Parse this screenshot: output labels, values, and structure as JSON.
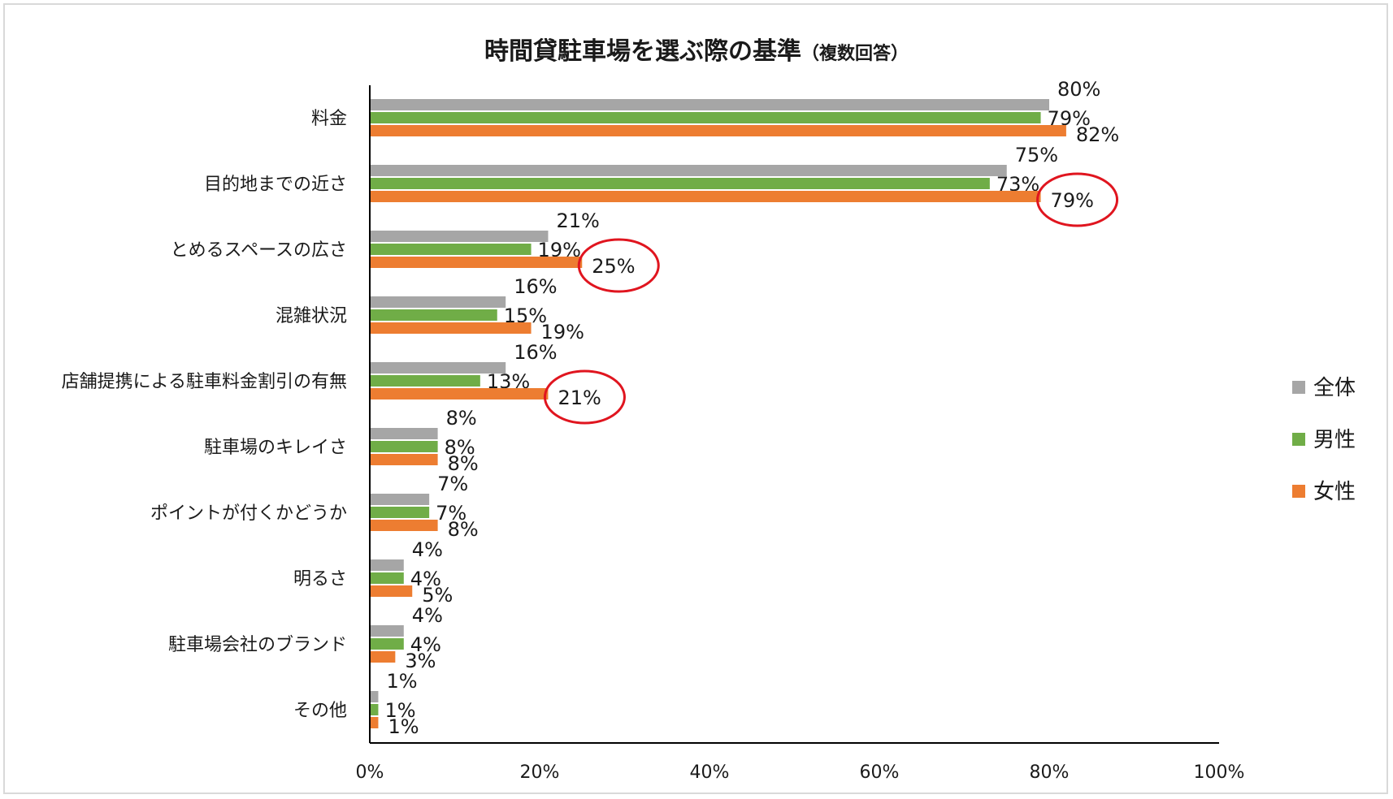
{
  "chart_data": {
    "type": "bar",
    "orientation": "horizontal",
    "title": "時間貸駐車場を選ぶ際の基準",
    "subtitle": "（複数回答）",
    "categories": [
      "料金",
      "目的地までの近さ",
      "とめるスペースの広さ",
      "混雑状況",
      "店舗提携による駐車料金割引の有無",
      "駐車場のキレイさ",
      "ポイントが付くかどうか",
      "明るさ",
      "駐車場会社のブランド",
      "その他"
    ],
    "series": [
      {
        "name": "全体",
        "color": "#a6a6a6",
        "values": [
          80,
          75,
          21,
          16,
          16,
          8,
          7,
          4,
          4,
          1
        ]
      },
      {
        "name": "男性",
        "color": "#70ad47",
        "values": [
          79,
          73,
          19,
          15,
          13,
          8,
          7,
          4,
          4,
          1
        ]
      },
      {
        "name": "女性",
        "color": "#ed7d31",
        "values": [
          82,
          79,
          25,
          19,
          21,
          8,
          8,
          5,
          3,
          1
        ]
      }
    ],
    "xlim": [
      0,
      100
    ],
    "xticks": [
      0,
      20,
      40,
      60,
      80,
      100
    ],
    "tick_suffix": "%",
    "data_label_suffix": "%",
    "legend_position": "right",
    "grid": false,
    "highlight_color": "#e0151f",
    "highlighted": [
      {
        "category": "目的地までの近さ",
        "series": "女性"
      },
      {
        "category": "とめるスペースの広さ",
        "series": "女性"
      },
      {
        "category": "店舗提携による駐車料金割引の有無",
        "series": "女性"
      }
    ]
  }
}
